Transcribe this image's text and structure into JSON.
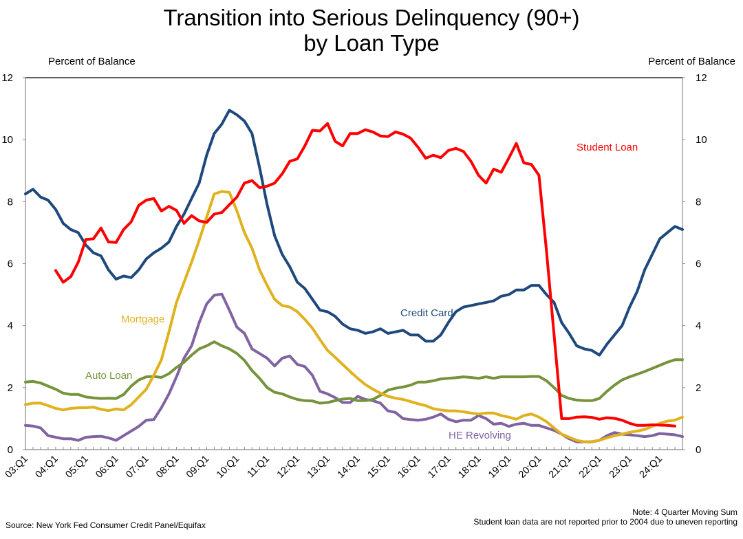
{
  "chart_data": {
    "type": "line",
    "title": "Transition into Serious Delinquency (90+)",
    "subtitle": "by Loan Type",
    "ylabel_left": "Percent of Balance",
    "ylabel_right": "Percent of Balance",
    "ylim": [
      0,
      12
    ],
    "yticks": [
      0,
      2,
      4,
      6,
      8,
      10,
      12
    ],
    "grid": false,
    "x_start": "03:Q1",
    "x_end": "24:Q4",
    "xtick_labels": [
      "03:Q1",
      "04:Q1",
      "05:Q1",
      "06:Q1",
      "07:Q1",
      "08:Q1",
      "09:Q1",
      "10:Q1",
      "11:Q1",
      "12:Q1",
      "13:Q1",
      "14:Q1",
      "15:Q1",
      "16:Q1",
      "17:Q1",
      "18:Q1",
      "19:Q1",
      "20:Q1",
      "21:Q1",
      "22:Q1",
      "23:Q1",
      "24:Q1"
    ],
    "n_quarters": 88,
    "series": [
      {
        "name": "Student Loan",
        "color": "#FF0000",
        "label_text": "Student Loan",
        "start_index": 4,
        "values": [
          5.78,
          5.4,
          5.58,
          6.05,
          6.78,
          6.8,
          7.15,
          6.7,
          6.68,
          7.1,
          7.35,
          7.88,
          8.05,
          8.1,
          7.7,
          7.85,
          7.72,
          7.3,
          7.55,
          7.38,
          7.33,
          7.6,
          7.65,
          7.9,
          8.15,
          8.6,
          8.68,
          8.45,
          8.5,
          8.6,
          8.9,
          9.3,
          9.38,
          9.8,
          10.3,
          10.28,
          10.52,
          9.95,
          9.8,
          10.2,
          10.2,
          10.32,
          10.25,
          10.12,
          10.1,
          10.25,
          10.18,
          10.05,
          9.75,
          9.4,
          9.5,
          9.42,
          9.65,
          9.72,
          9.62,
          9.3,
          8.85,
          8.6,
          9.05,
          8.95,
          9.4,
          9.88,
          9.25,
          9.2,
          8.85,
          6.4,
          3.7,
          1.0,
          1.0,
          1.05,
          1.06,
          1.04,
          0.98,
          1.03,
          1.01,
          0.95,
          0.85,
          0.78,
          0.78,
          0.8,
          0.79,
          0.78,
          0.76
        ]
      },
      {
        "name": "Credit Card",
        "color": "#1F497D",
        "label_text": "Credit Card",
        "start_index": 0,
        "values": [
          8.25,
          8.4,
          8.15,
          8.05,
          7.75,
          7.3,
          7.1,
          7.0,
          6.6,
          6.35,
          6.25,
          5.8,
          5.5,
          5.6,
          5.55,
          5.8,
          6.15,
          6.35,
          6.5,
          6.7,
          7.2,
          7.6,
          8.1,
          8.6,
          9.5,
          10.2,
          10.5,
          10.95,
          10.8,
          10.6,
          10.2,
          9.1,
          7.9,
          6.9,
          6.3,
          5.9,
          5.4,
          5.2,
          4.85,
          4.5,
          4.45,
          4.3,
          4.05,
          3.9,
          3.85,
          3.75,
          3.8,
          3.9,
          3.75,
          3.8,
          3.85,
          3.7,
          3.7,
          3.5,
          3.5,
          3.7,
          4.1,
          4.45,
          4.6,
          4.65,
          4.7,
          4.75,
          4.8,
          4.95,
          5.0,
          5.15,
          5.15,
          5.3,
          5.3,
          5.0,
          4.75,
          4.1,
          3.75,
          3.35,
          3.25,
          3.2,
          3.05,
          3.4,
          3.7,
          4.0,
          4.6,
          5.1,
          5.8,
          6.3,
          6.8,
          7.0,
          7.2,
          7.1
        ]
      },
      {
        "name": "Mortgage",
        "color": "#E0B21E",
        "label_text": "Mortgage",
        "start_index": 0,
        "values": [
          1.45,
          1.5,
          1.5,
          1.42,
          1.33,
          1.28,
          1.33,
          1.35,
          1.35,
          1.37,
          1.3,
          1.26,
          1.31,
          1.28,
          1.45,
          1.7,
          1.95,
          2.4,
          2.9,
          3.8,
          4.75,
          5.4,
          6.05,
          6.75,
          7.5,
          8.25,
          8.33,
          8.3,
          7.7,
          7.0,
          6.5,
          5.8,
          5.3,
          4.85,
          4.65,
          4.6,
          4.45,
          4.2,
          3.92,
          3.55,
          3.2,
          2.98,
          2.75,
          2.52,
          2.3,
          2.1,
          1.95,
          1.82,
          1.72,
          1.66,
          1.62,
          1.55,
          1.48,
          1.42,
          1.32,
          1.28,
          1.25,
          1.25,
          1.22,
          1.18,
          1.15,
          1.18,
          1.18,
          1.1,
          1.05,
          0.98,
          1.1,
          1.15,
          1.05,
          0.9,
          0.7,
          0.5,
          0.4,
          0.3,
          0.25,
          0.26,
          0.3,
          0.38,
          0.45,
          0.5,
          0.56,
          0.6,
          0.65,
          0.75,
          0.85,
          0.92,
          0.95,
          1.05
        ]
      },
      {
        "name": "Auto Loan",
        "color": "#77933C",
        "label_text": "Auto Loan",
        "start_index": 0,
        "values": [
          2.18,
          2.2,
          2.15,
          2.05,
          1.95,
          1.82,
          1.78,
          1.78,
          1.7,
          1.67,
          1.65,
          1.66,
          1.65,
          1.78,
          2.05,
          2.25,
          2.35,
          2.36,
          2.33,
          2.45,
          2.65,
          2.82,
          3.05,
          3.25,
          3.35,
          3.48,
          3.35,
          3.25,
          3.1,
          2.88,
          2.55,
          2.3,
          2.0,
          1.85,
          1.8,
          1.7,
          1.62,
          1.58,
          1.57,
          1.5,
          1.52,
          1.58,
          1.63,
          1.65,
          1.58,
          1.58,
          1.62,
          1.75,
          1.92,
          1.98,
          2.02,
          2.08,
          2.18,
          2.18,
          2.22,
          2.28,
          2.3,
          2.32,
          2.35,
          2.33,
          2.3,
          2.35,
          2.3,
          2.35,
          2.35,
          2.35,
          2.35,
          2.36,
          2.36,
          2.22,
          2.0,
          1.75,
          1.65,
          1.6,
          1.58,
          1.58,
          1.65,
          1.88,
          2.08,
          2.25,
          2.35,
          2.43,
          2.52,
          2.62,
          2.72,
          2.82,
          2.9,
          2.9
        ]
      },
      {
        "name": "HE Revolving",
        "color": "#8064A2",
        "label_text": "HE Revolving",
        "start_index": 0,
        "values": [
          0.78,
          0.76,
          0.7,
          0.45,
          0.4,
          0.35,
          0.35,
          0.3,
          0.4,
          0.42,
          0.43,
          0.38,
          0.3,
          0.45,
          0.6,
          0.75,
          0.95,
          0.97,
          1.35,
          1.8,
          2.35,
          2.95,
          3.35,
          4.1,
          4.7,
          4.98,
          5.02,
          4.5,
          3.95,
          3.75,
          3.25,
          3.1,
          2.95,
          2.7,
          2.95,
          3.02,
          2.75,
          2.68,
          2.4,
          1.88,
          1.8,
          1.68,
          1.52,
          1.52,
          1.72,
          1.62,
          1.58,
          1.5,
          1.25,
          1.2,
          1.0,
          0.97,
          0.95,
          0.98,
          1.05,
          1.15,
          0.98,
          0.9,
          0.95,
          0.95,
          1.1,
          1.0,
          0.82,
          0.85,
          0.75,
          0.82,
          0.85,
          0.78,
          0.78,
          0.7,
          0.62,
          0.5,
          0.35,
          0.25,
          0.25,
          0.25,
          0.3,
          0.45,
          0.55,
          0.5,
          0.48,
          0.45,
          0.42,
          0.45,
          0.52,
          0.5,
          0.48,
          0.42
        ]
      }
    ],
    "annotations": [
      {
        "series": "Student Loan",
        "text": "Student Loan",
        "position": "upper-right"
      },
      {
        "series": "Credit Card",
        "text": "Credit Card",
        "position": "center"
      },
      {
        "series": "Mortgage",
        "text": "Mortgage",
        "position": "left"
      },
      {
        "series": "Auto Loan",
        "text": "Auto Loan",
        "position": "lower-left"
      },
      {
        "series": "HE Revolving",
        "text": "HE Revolving",
        "position": "lower-center"
      }
    ]
  },
  "footer": {
    "source": "Source: New York Fed Consumer Credit Panel/Equifax",
    "note_line1": "Note: 4 Quarter Moving Sum",
    "note_line2": "Student loan data are not reported prior to 2004 due to uneven reporting"
  }
}
